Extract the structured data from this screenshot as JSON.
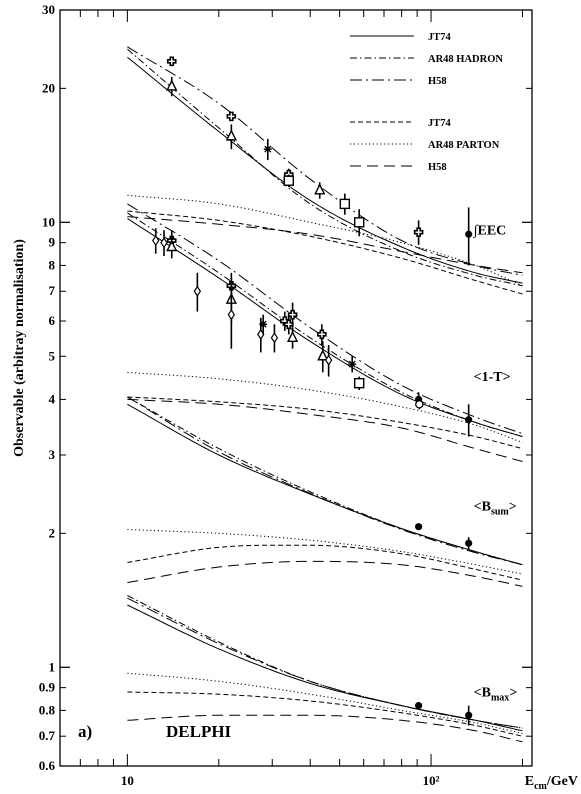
{
  "chart_data": {
    "type": "line",
    "title": "",
    "xlabel": "E_cm/GeV",
    "ylabel": "Observable (arbitray normalisation)",
    "xscale": "log",
    "yscale": "log",
    "xlim": [
      6,
      215
    ],
    "ylim": [
      0.6,
      30
    ],
    "panel_label": "a)",
    "experiment_label": "DELPHI",
    "x_ticks": [
      10,
      100
    ],
    "x_tick_labels": [
      "10",
      "10²"
    ],
    "y_ticks": [
      0.6,
      0.7,
      0.8,
      0.9,
      1,
      2,
      3,
      4,
      5,
      6,
      7,
      8,
      9,
      10,
      20,
      30
    ],
    "y_tick_labels": [
      "0.6",
      "0.7",
      "0.8",
      "0.9",
      "1",
      "2",
      "3",
      "4",
      "5",
      "6",
      "7",
      "8",
      "9",
      "10",
      "20",
      "30"
    ],
    "legend": {
      "placement": "top-right",
      "entries": [
        {
          "label": "JT74",
          "style": "solid",
          "group": "hadron"
        },
        {
          "label": "AR48 HADRON",
          "style": "dashdot",
          "group": "hadron"
        },
        {
          "label": "H58",
          "style": "longdashdot",
          "group": "hadron"
        },
        {
          "label": "JT74",
          "style": "dashed",
          "group": "parton"
        },
        {
          "label": "AR48 PARTON",
          "style": "dotted",
          "group": "parton"
        },
        {
          "label": "H58",
          "style": "longdash",
          "group": "parton"
        }
      ]
    },
    "observables": [
      {
        "label": "∫EEC",
        "label_position": [
          130,
          9.4
        ],
        "curves": [
          {
            "model": "JT74 hadron",
            "style": "solid",
            "x": [
              10,
              20,
              40,
              80,
              140,
              200
            ],
            "y": [
              23.5,
              16.0,
              11.2,
              8.8,
              7.7,
              7.3
            ]
          },
          {
            "model": "AR48 hadron",
            "style": "dashdot",
            "x": [
              10,
              20,
              40,
              80,
              140,
              200
            ],
            "y": [
              24.5,
              16.3,
              11.0,
              8.6,
              7.6,
              7.2
            ]
          },
          {
            "model": "H58 hadron",
            "style": "longdashdot",
            "x": [
              10,
              20,
              40,
              80,
              140,
              200
            ],
            "y": [
              24.8,
              18.5,
              12.5,
              9.1,
              8.0,
              7.6
            ]
          },
          {
            "model": "JT74 parton",
            "style": "dashed",
            "x": [
              10,
              20,
              40,
              80,
              140,
              200
            ],
            "y": [
              10.6,
              10.1,
              9.3,
              8.3,
              7.4,
              6.9
            ]
          },
          {
            "model": "AR48 parton",
            "style": "dotted",
            "x": [
              10,
              20,
              40,
              80,
              140,
              200
            ],
            "y": [
              11.5,
              11.0,
              10.0,
              9.0,
              8.0,
              7.2
            ]
          },
          {
            "model": "H58 parton",
            "style": "longdash",
            "x": [
              10,
              20,
              40,
              80,
              140,
              200
            ],
            "y": [
              10.3,
              9.9,
              9.4,
              8.6,
              8.0,
              7.7
            ]
          }
        ],
        "points": [
          {
            "x": 14,
            "y": 23.0,
            "err": 0.5,
            "marker": "cross"
          },
          {
            "x": 14,
            "y": 20.2,
            "err": 1.0,
            "marker": "triangle"
          },
          {
            "x": 22,
            "y": 17.3,
            "err": 0.4,
            "marker": "cross"
          },
          {
            "x": 22,
            "y": 15.6,
            "err": 1.0,
            "marker": "triangle"
          },
          {
            "x": 29,
            "y": 14.6,
            "err": 0.8,
            "marker": "star"
          },
          {
            "x": 34,
            "y": 12.8,
            "err": 0.4,
            "marker": "cross"
          },
          {
            "x": 34,
            "y": 12.4,
            "err": 0.4,
            "marker": "square"
          },
          {
            "x": 43,
            "y": 11.8,
            "err": 0.5,
            "marker": "triangle"
          },
          {
            "x": 52,
            "y": 11.0,
            "err": 0.6,
            "marker": "square"
          },
          {
            "x": 58,
            "y": 10.0,
            "err": 0.7,
            "marker": "square"
          },
          {
            "x": 91,
            "y": 9.5,
            "err": 0.6,
            "marker": "cross"
          },
          {
            "x": 133,
            "y": 9.4,
            "err": 1.4,
            "marker": "dot"
          }
        ]
      },
      {
        "label": "<1-T>",
        "label_position": [
          130,
          4.4
        ],
        "curves": [
          {
            "model": "JT74 hadron",
            "style": "solid",
            "x": [
              10,
              20,
              40,
              80,
              140,
              200
            ],
            "y": [
              10.2,
              7.5,
              5.4,
              4.1,
              3.55,
              3.3
            ]
          },
          {
            "model": "AR48 hadron",
            "style": "dashdot",
            "x": [
              10,
              20,
              40,
              80,
              140,
              200
            ],
            "y": [
              10.5,
              7.7,
              5.5,
              4.15,
              3.55,
              3.3
            ]
          },
          {
            "model": "H58 hadron",
            "style": "longdashdot",
            "x": [
              10,
              20,
              40,
              80,
              140,
              200
            ],
            "y": [
              11.0,
              8.2,
              5.8,
              4.3,
              3.65,
              3.35
            ]
          },
          {
            "model": "JT74 parton",
            "style": "dashed",
            "x": [
              10,
              20,
              40,
              80,
              140,
              200
            ],
            "y": [
              4.05,
              3.95,
              3.8,
              3.55,
              3.3,
              3.1
            ]
          },
          {
            "model": "AR48 parton",
            "style": "dotted",
            "x": [
              10,
              20,
              40,
              80,
              140,
              200
            ],
            "y": [
              4.6,
              4.45,
              4.2,
              3.85,
              3.5,
              3.2
            ]
          },
          {
            "model": "H58 parton",
            "style": "longdash",
            "x": [
              10,
              20,
              40,
              80,
              140,
              200
            ],
            "y": [
              4.0,
              3.9,
              3.7,
              3.45,
              3.1,
              2.9
            ]
          }
        ],
        "points": [
          {
            "x": 12.4,
            "y": 9.1,
            "err": 0.6,
            "marker": "diamond"
          },
          {
            "x": 13.2,
            "y": 9.0,
            "err": 0.6,
            "marker": "diamond"
          },
          {
            "x": 14,
            "y": 9.1,
            "err": 0.5,
            "marker": "cross"
          },
          {
            "x": 14,
            "y": 8.8,
            "err": 0.5,
            "marker": "triangle"
          },
          {
            "x": 17,
            "y": 7.0,
            "err": 0.7,
            "marker": "diamond"
          },
          {
            "x": 22,
            "y": 7.2,
            "err": 0.5,
            "marker": "cross"
          },
          {
            "x": 22,
            "y": 6.7,
            "err": 0.8,
            "marker": "triangle"
          },
          {
            "x": 22,
            "y": 6.2,
            "err": 1.0,
            "marker": "diamond"
          },
          {
            "x": 27.5,
            "y": 5.6,
            "err": 0.5,
            "marker": "diamond"
          },
          {
            "x": 28,
            "y": 5.9,
            "err": 0.3,
            "marker": "star"
          },
          {
            "x": 30.5,
            "y": 5.5,
            "err": 0.4,
            "marker": "diamond"
          },
          {
            "x": 33,
            "y": 6.0,
            "err": 0.3,
            "marker": "cross"
          },
          {
            "x": 34,
            "y": 5.9,
            "err": 0.3,
            "marker": "cross"
          },
          {
            "x": 35,
            "y": 6.2,
            "err": 0.4,
            "marker": "cross"
          },
          {
            "x": 35,
            "y": 5.5,
            "err": 0.3,
            "marker": "triangle"
          },
          {
            "x": 43.7,
            "y": 5.6,
            "err": 0.3,
            "marker": "cross"
          },
          {
            "x": 44,
            "y": 5.0,
            "err": 0.4,
            "marker": "triangle"
          },
          {
            "x": 46,
            "y": 4.9,
            "err": 0.4,
            "marker": "diamond"
          },
          {
            "x": 55,
            "y": 4.8,
            "err": 0.2,
            "marker": "star"
          },
          {
            "x": 58,
            "y": 4.35,
            "err": 0.15,
            "marker": "square"
          },
          {
            "x": 91,
            "y": 4.0,
            "err": 0.15,
            "marker": "dot"
          },
          {
            "x": 91.5,
            "y": 3.9,
            "err": 0.1,
            "marker": "circle"
          },
          {
            "x": 133,
            "y": 3.6,
            "err": 0.3,
            "marker": "dot"
          }
        ]
      },
      {
        "label": "<B_sum>",
        "label_position": [
          130,
          2.25
        ],
        "curves": [
          {
            "model": "JT74 hadron",
            "style": "solid",
            "x": [
              10,
              20,
              40,
              80,
              140,
              200
            ],
            "y": [
              3.9,
              3.0,
              2.45,
              2.05,
              1.82,
              1.7
            ]
          },
          {
            "model": "AR48 hadron",
            "style": "dashdot",
            "x": [
              10,
              20,
              40,
              80,
              140,
              200
            ],
            "y": [
              4.05,
              3.1,
              2.48,
              2.05,
              1.82,
              1.7
            ]
          },
          {
            "model": "H58 hadron",
            "style": "longdashdot",
            "x": [
              10,
              20,
              40,
              80,
              140,
              200
            ],
            "y": [
              4.05,
              3.05,
              2.46,
              2.04,
              1.81,
              1.7
            ]
          },
          {
            "model": "JT74 parton",
            "style": "dashed",
            "x": [
              10,
              20,
              40,
              80,
              140,
              200
            ],
            "y": [
              1.72,
              1.86,
              1.88,
              1.8,
              1.66,
              1.57
            ]
          },
          {
            "model": "AR48 parton",
            "style": "dotted",
            "x": [
              10,
              20,
              40,
              80,
              140,
              200
            ],
            "y": [
              2.04,
              2.0,
              1.93,
              1.82,
              1.7,
              1.62
            ]
          },
          {
            "model": "H58 parton",
            "style": "longdash",
            "x": [
              10,
              20,
              40,
              80,
              140,
              200
            ],
            "y": [
              1.55,
              1.68,
              1.73,
              1.7,
              1.6,
              1.52
            ]
          }
        ],
        "points": [
          {
            "x": 91,
            "y": 2.07,
            "err": 0.03,
            "marker": "dot"
          },
          {
            "x": 133,
            "y": 1.9,
            "err": 0.06,
            "marker": "dot"
          }
        ]
      },
      {
        "label": "<B_max>",
        "label_position": [
          130,
          0.86
        ],
        "curves": [
          {
            "model": "JT74 hadron",
            "style": "solid",
            "x": [
              10,
              20,
              40,
              80,
              140,
              200
            ],
            "y": [
              1.38,
              1.1,
              0.92,
              0.82,
              0.76,
              0.72
            ]
          },
          {
            "model": "AR48 hadron",
            "style": "dashdot",
            "x": [
              10,
              20,
              40,
              80,
              140,
              200
            ],
            "y": [
              1.45,
              1.14,
              0.93,
              0.82,
              0.76,
              0.73
            ]
          },
          {
            "model": "H58 hadron",
            "style": "longdashdot",
            "x": [
              10,
              20,
              40,
              80,
              140,
              200
            ],
            "y": [
              1.43,
              1.13,
              0.93,
              0.82,
              0.76,
              0.73
            ]
          },
          {
            "model": "JT74 parton",
            "style": "dashed",
            "x": [
              10,
              20,
              40,
              80,
              140,
              200
            ],
            "y": [
              0.88,
              0.87,
              0.84,
              0.79,
              0.74,
              0.7
            ]
          },
          {
            "model": "AR48 parton",
            "style": "dotted",
            "x": [
              10,
              20,
              40,
              80,
              140,
              200
            ],
            "y": [
              0.97,
              0.93,
              0.87,
              0.8,
              0.75,
              0.71
            ]
          },
          {
            "model": "H58 parton",
            "style": "longdash",
            "x": [
              10,
              20,
              40,
              80,
              140,
              200
            ],
            "y": [
              0.76,
              0.78,
              0.78,
              0.76,
              0.72,
              0.68
            ]
          }
        ],
        "points": [
          {
            "x": 91,
            "y": 0.82,
            "err": 0.01,
            "marker": "dot"
          },
          {
            "x": 133,
            "y": 0.78,
            "err": 0.04,
            "marker": "dot"
          }
        ]
      }
    ]
  }
}
